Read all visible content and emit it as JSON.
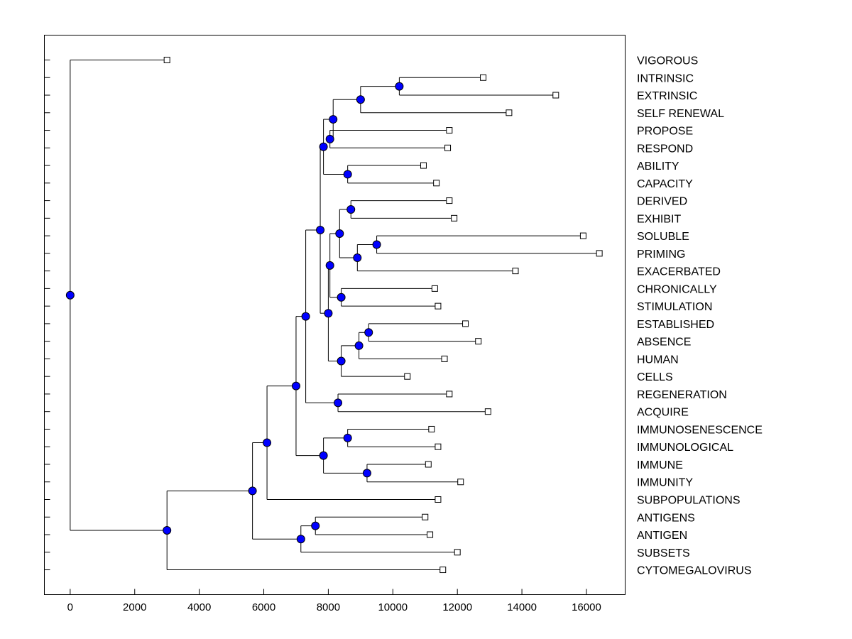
{
  "chart_data": {
    "type": "dendrogram",
    "title": "",
    "xlabel": "",
    "ylabel": "",
    "xlim": [
      -800,
      17200
    ],
    "x_ticks": [
      0,
      2000,
      4000,
      6000,
      8000,
      10000,
      12000,
      14000,
      16000
    ],
    "x_tick_labels": [
      "0",
      "2000",
      "4000",
      "6000",
      "8000",
      "10000",
      "12000",
      "14000",
      "16000"
    ],
    "node_color": "#0000ff",
    "leaves": [
      {
        "label": "VIGOROUS",
        "value": 3000
      },
      {
        "label": "INTRINSIC",
        "value": 12800
      },
      {
        "label": "EXTRINSIC",
        "value": 15050
      },
      {
        "label": "SELF RENEWAL",
        "value": 13600
      },
      {
        "label": "PROPOSE",
        "value": 11750
      },
      {
        "label": "RESPOND",
        "value": 11700
      },
      {
        "label": "ABILITY",
        "value": 10950
      },
      {
        "label": "CAPACITY",
        "value": 11350
      },
      {
        "label": "DERIVED",
        "value": 11750
      },
      {
        "label": "EXHIBIT",
        "value": 11900
      },
      {
        "label": "SOLUBLE",
        "value": 15900
      },
      {
        "label": "PRIMING",
        "value": 16400
      },
      {
        "label": "EXACERBATED",
        "value": 13800
      },
      {
        "label": "CHRONICALLY",
        "value": 11300
      },
      {
        "label": "STIMULATION",
        "value": 11400
      },
      {
        "label": "ESTABLISHED",
        "value": 12250
      },
      {
        "label": "ABSENCE",
        "value": 12650
      },
      {
        "label": "HUMAN",
        "value": 11600
      },
      {
        "label": "CELLS",
        "value": 10450
      },
      {
        "label": "REGENERATION",
        "value": 11750
      },
      {
        "label": "ACQUIRE",
        "value": 12950
      },
      {
        "label": "IMMUNOSENESCENCE",
        "value": 11200
      },
      {
        "label": "IMMUNOLOGICAL",
        "value": 11400
      },
      {
        "label": "IMMUNE",
        "value": 11100
      },
      {
        "label": "IMMUNITY",
        "value": 12100
      },
      {
        "label": "SUBPOPULATIONS",
        "value": 11400
      },
      {
        "label": "ANTIGENS",
        "value": 11000
      },
      {
        "label": "ANTIGEN",
        "value": 11150
      },
      {
        "label": "SUBSETS",
        "value": 12000
      },
      {
        "label": "CYTOMEGALOVIRUS",
        "value": 11550
      }
    ],
    "merges": [
      {
        "id": "n1",
        "value": 10200,
        "children": [
          "INTRINSIC",
          "EXTRINSIC"
        ]
      },
      {
        "id": "n2",
        "value": 9000,
        "children": [
          "n1",
          "SELF RENEWAL"
        ]
      },
      {
        "id": "n3",
        "value": 8050,
        "children": [
          "PROPOSE",
          "RESPOND"
        ]
      },
      {
        "id": "n4",
        "value": 8150,
        "children": [
          "n2",
          "n3"
        ]
      },
      {
        "id": "n5",
        "value": 8600,
        "children": [
          "ABILITY",
          "CAPACITY"
        ]
      },
      {
        "id": "n6",
        "value": 7850,
        "children": [
          "n4",
          "n5"
        ]
      },
      {
        "id": "n7",
        "value": 8700,
        "children": [
          "DERIVED",
          "EXHIBIT"
        ]
      },
      {
        "id": "n8",
        "value": 9500,
        "children": [
          "SOLUBLE",
          "PRIMING"
        ]
      },
      {
        "id": "n9",
        "value": 8900,
        "children": [
          "n8",
          "EXACERBATED"
        ]
      },
      {
        "id": "n10",
        "value": 8350,
        "children": [
          "n7",
          "n9"
        ]
      },
      {
        "id": "n11",
        "value": 8400,
        "children": [
          "CHRONICALLY",
          "STIMULATION"
        ]
      },
      {
        "id": "n12",
        "value": 8050,
        "children": [
          "n10",
          "n11"
        ]
      },
      {
        "id": "n13",
        "value": 9250,
        "children": [
          "ESTABLISHED",
          "ABSENCE"
        ]
      },
      {
        "id": "n14",
        "value": 8950,
        "children": [
          "n13",
          "HUMAN"
        ]
      },
      {
        "id": "n15",
        "value": 8400,
        "children": [
          "n14",
          "CELLS"
        ]
      },
      {
        "id": "n16",
        "value": 8000,
        "children": [
          "n12",
          "n15"
        ]
      },
      {
        "id": "n17",
        "value": 7750,
        "children": [
          "n6",
          "n16"
        ]
      },
      {
        "id": "n18",
        "value": 8300,
        "children": [
          "REGENERATION",
          "ACQUIRE"
        ]
      },
      {
        "id": "n19",
        "value": 7300,
        "children": [
          "n17",
          "n18"
        ]
      },
      {
        "id": "n20",
        "value": 8600,
        "children": [
          "IMMUNOSENESCENCE",
          "IMMUNOLOGICAL"
        ]
      },
      {
        "id": "n21",
        "value": 9200,
        "children": [
          "IMMUNE",
          "IMMUNITY"
        ]
      },
      {
        "id": "n22",
        "value": 7850,
        "children": [
          "n20",
          "n21"
        ]
      },
      {
        "id": "n23",
        "value": 7000,
        "children": [
          "n19",
          "n22"
        ]
      },
      {
        "id": "n24",
        "value": 6100,
        "children": [
          "n23",
          "SUBPOPULATIONS"
        ]
      },
      {
        "id": "n25",
        "value": 7600,
        "children": [
          "ANTIGENS",
          "ANTIGEN"
        ]
      },
      {
        "id": "n26",
        "value": 7150,
        "children": [
          "n25",
          "SUBSETS"
        ]
      },
      {
        "id": "n27",
        "value": 5650,
        "children": [
          "n24",
          "n26"
        ]
      },
      {
        "id": "n28",
        "value": 3000,
        "children": [
          "n27",
          "CYTOMEGALOVIRUS"
        ]
      },
      {
        "id": "n29",
        "value": 0,
        "children": [
          "VIGOROUS",
          "n28"
        ]
      }
    ]
  }
}
